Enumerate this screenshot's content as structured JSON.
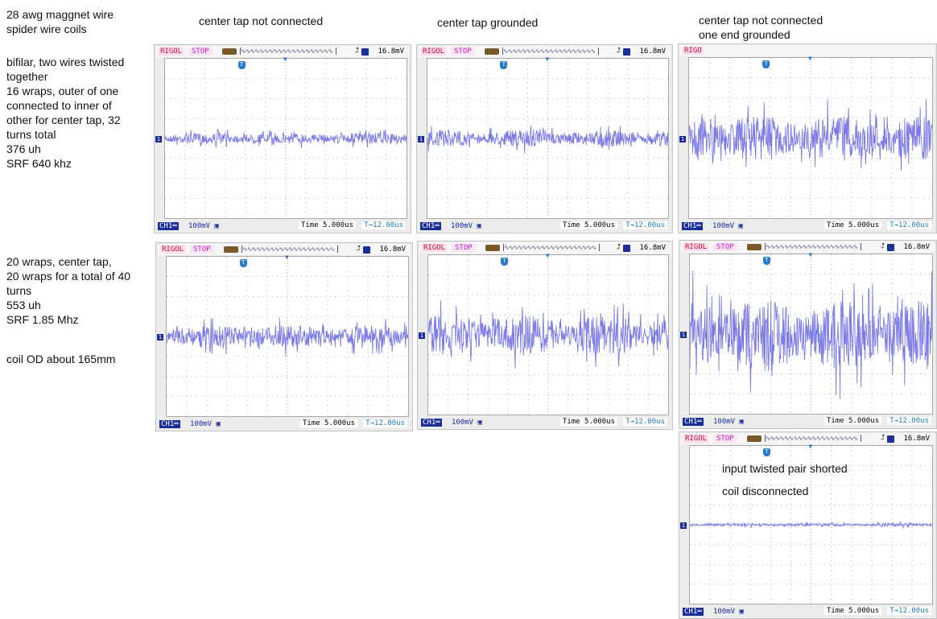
{
  "notes": {
    "title_lines": [
      "28 awg maggnet wire",
      "spider wire coils"
    ],
    "coil1_lines": [
      "bifilar, two wires twisted",
      "together",
      "16 wraps, outer of one",
      "connected to inner of",
      "other for center tap, 32",
      "turns total",
      "376 uh",
      "SRF 640 khz"
    ],
    "coil2_lines": [
      "20 wraps, center tap,",
      "20 wraps for a total of 40",
      "turns",
      "553 uh",
      "SRF 1.85 Mhz"
    ],
    "od": "coil OD about 165mm"
  },
  "column_headings": {
    "col1": "center tap not connected",
    "col2": "center tap grounded",
    "col3_line1": "center tap not connected",
    "col3_line2": "one end grounded"
  },
  "colors": {
    "trace": "#7b7be6",
    "grid": "#9a9a9a",
    "brand": "#c8102e",
    "stop": "#c020c0",
    "channel": "#1a2e9a"
  },
  "scopes": [
    {
      "brand": "RIGOL",
      "status": "STOP",
      "trigger_level": "16.8mV",
      "channel": "CH1",
      "volts_div": "100mV",
      "timebase": "Time 5.000us",
      "trigger_pos": "12.00us",
      "noise_amplitude_div": 0.4,
      "overlay": []
    },
    {
      "brand": "RIGOL",
      "status": "STOP",
      "trigger_level": "16.8mV",
      "channel": "CH1",
      "volts_div": "100mV",
      "timebase": "Time 5.000us",
      "trigger_pos": "12.00us",
      "noise_amplitude_div": 0.6,
      "overlay": []
    },
    {
      "brand": "RIGO",
      "status": "",
      "trigger_level": "",
      "channel": "CH1",
      "volts_div": "100mV",
      "timebase": "Time 5.000us",
      "trigger_pos": "12.00us",
      "noise_amplitude_div": 1.6,
      "overlay": [],
      "header_obscured": true
    },
    {
      "brand": "RIGOL",
      "status": "STOP",
      "trigger_level": "16.8mV",
      "channel": "CH1",
      "volts_div": "100mV",
      "timebase": "Time 5.000us",
      "trigger_pos": "12.00us",
      "noise_amplitude_div": 0.8,
      "overlay": []
    },
    {
      "brand": "RIGOL",
      "status": "STOP",
      "trigger_level": "16.8mV",
      "channel": "CH1",
      "volts_div": "100mV",
      "timebase": "Time 5.000us",
      "trigger_pos": "12.00us",
      "noise_amplitude_div": 1.4,
      "overlay": []
    },
    {
      "brand": "RIGOL",
      "status": "STOP",
      "trigger_level": "16.8mV",
      "channel": "CH1",
      "volts_div": "100mV",
      "timebase": "Time 5.000us",
      "trigger_pos": "12.00us",
      "noise_amplitude_div": 2.6,
      "overlay": []
    },
    {
      "brand": "RIGOL",
      "status": "STOP",
      "trigger_level": "16.8mV",
      "channel": "CH1",
      "volts_div": "100mV",
      "timebase": "Time 5.000us",
      "trigger_pos": "12.00us",
      "noise_amplitude_div": 0.12,
      "overlay": [
        "input twisted pair shorted",
        "coil disconnected"
      ]
    }
  ]
}
